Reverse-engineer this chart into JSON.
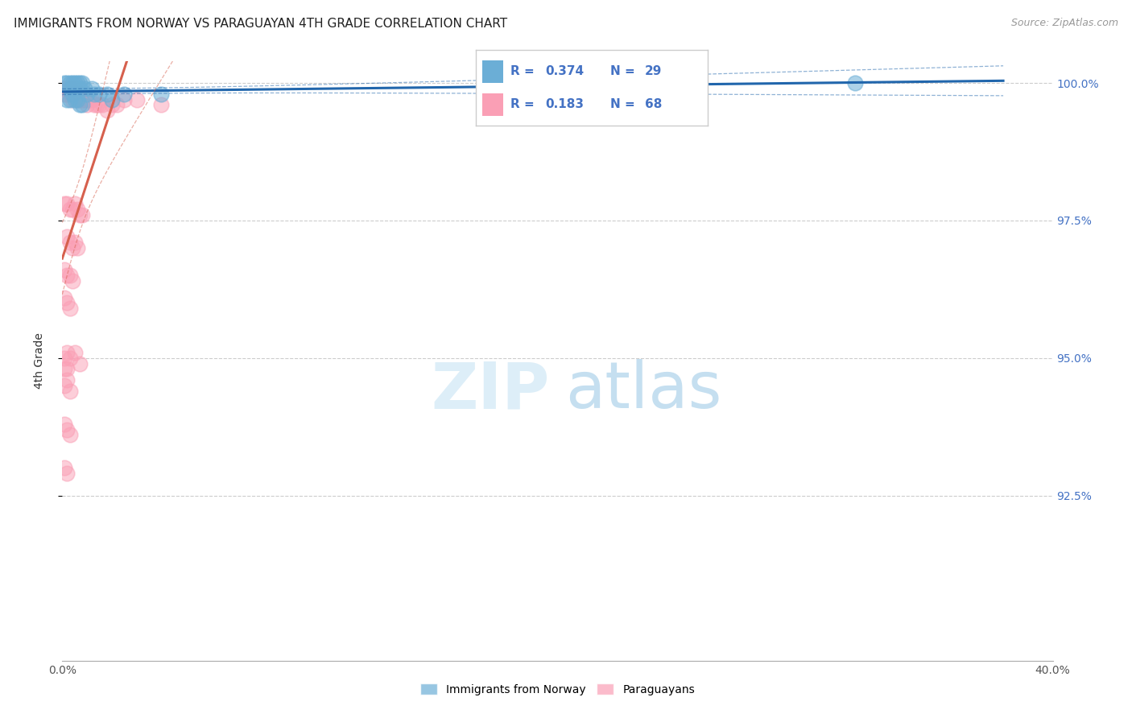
{
  "title": "IMMIGRANTS FROM NORWAY VS PARAGUAYAN 4TH GRADE CORRELATION CHART",
  "source": "Source: ZipAtlas.com",
  "ylabel": "4th Grade",
  "ylabel_right_ticks": [
    "100.0%",
    "97.5%",
    "95.0%",
    "92.5%"
  ],
  "ylabel_right_vals": [
    1.0,
    0.975,
    0.95,
    0.925
  ],
  "xlim": [
    0.0,
    0.4
  ],
  "ylim": [
    0.895,
    1.004
  ],
  "blue_color": "#6baed6",
  "pink_color": "#fa9fb5",
  "blue_line_color": "#2166ac",
  "pink_line_color": "#d6604d",
  "norway_x": [
    0.001,
    0.002,
    0.003,
    0.003,
    0.004,
    0.005,
    0.005,
    0.006,
    0.007,
    0.007,
    0.008,
    0.009,
    0.01,
    0.012,
    0.013,
    0.015,
    0.018,
    0.02,
    0.025,
    0.04,
    0.002,
    0.003,
    0.004,
    0.005,
    0.006,
    0.007,
    0.008,
    0.18,
    0.32
  ],
  "norway_y": [
    1.0,
    1.0,
    1.0,
    0.999,
    1.0,
    1.0,
    0.999,
    1.0,
    1.0,
    0.999,
    1.0,
    0.999,
    0.998,
    0.999,
    0.998,
    0.998,
    0.998,
    0.997,
    0.998,
    0.998,
    0.997,
    0.997,
    0.998,
    0.997,
    0.997,
    0.996,
    0.996,
    1.0,
    1.0
  ],
  "paraguay_x": [
    0.0005,
    0.001,
    0.001,
    0.002,
    0.002,
    0.003,
    0.003,
    0.004,
    0.004,
    0.005,
    0.005,
    0.006,
    0.006,
    0.007,
    0.007,
    0.008,
    0.008,
    0.009,
    0.01,
    0.01,
    0.011,
    0.012,
    0.013,
    0.014,
    0.015,
    0.016,
    0.018,
    0.02,
    0.022,
    0.025,
    0.03,
    0.04,
    0.001,
    0.002,
    0.003,
    0.004,
    0.005,
    0.006,
    0.007,
    0.008,
    0.002,
    0.003,
    0.004,
    0.005,
    0.006,
    0.001,
    0.002,
    0.003,
    0.004,
    0.001,
    0.002,
    0.003,
    0.002,
    0.003,
    0.005,
    0.007,
    0.001,
    0.003,
    0.001,
    0.002,
    0.003,
    0.001,
    0.002,
    0.001,
    0.002,
    0.001,
    0.002
  ],
  "paraguay_y": [
    0.999,
    0.999,
    0.998,
    0.999,
    0.998,
    0.999,
    0.998,
    0.999,
    0.997,
    0.999,
    0.998,
    0.998,
    0.997,
    0.998,
    0.997,
    0.998,
    0.997,
    0.997,
    0.997,
    0.996,
    0.997,
    0.997,
    0.996,
    0.996,
    0.996,
    0.996,
    0.995,
    0.996,
    0.996,
    0.997,
    0.997,
    0.996,
    0.978,
    0.978,
    0.977,
    0.977,
    0.978,
    0.977,
    0.976,
    0.976,
    0.972,
    0.971,
    0.97,
    0.971,
    0.97,
    0.966,
    0.965,
    0.965,
    0.964,
    0.961,
    0.96,
    0.959,
    0.951,
    0.95,
    0.951,
    0.949,
    0.945,
    0.944,
    0.938,
    0.937,
    0.936,
    0.93,
    0.929,
    0.95,
    0.948,
    0.948,
    0.946
  ]
}
